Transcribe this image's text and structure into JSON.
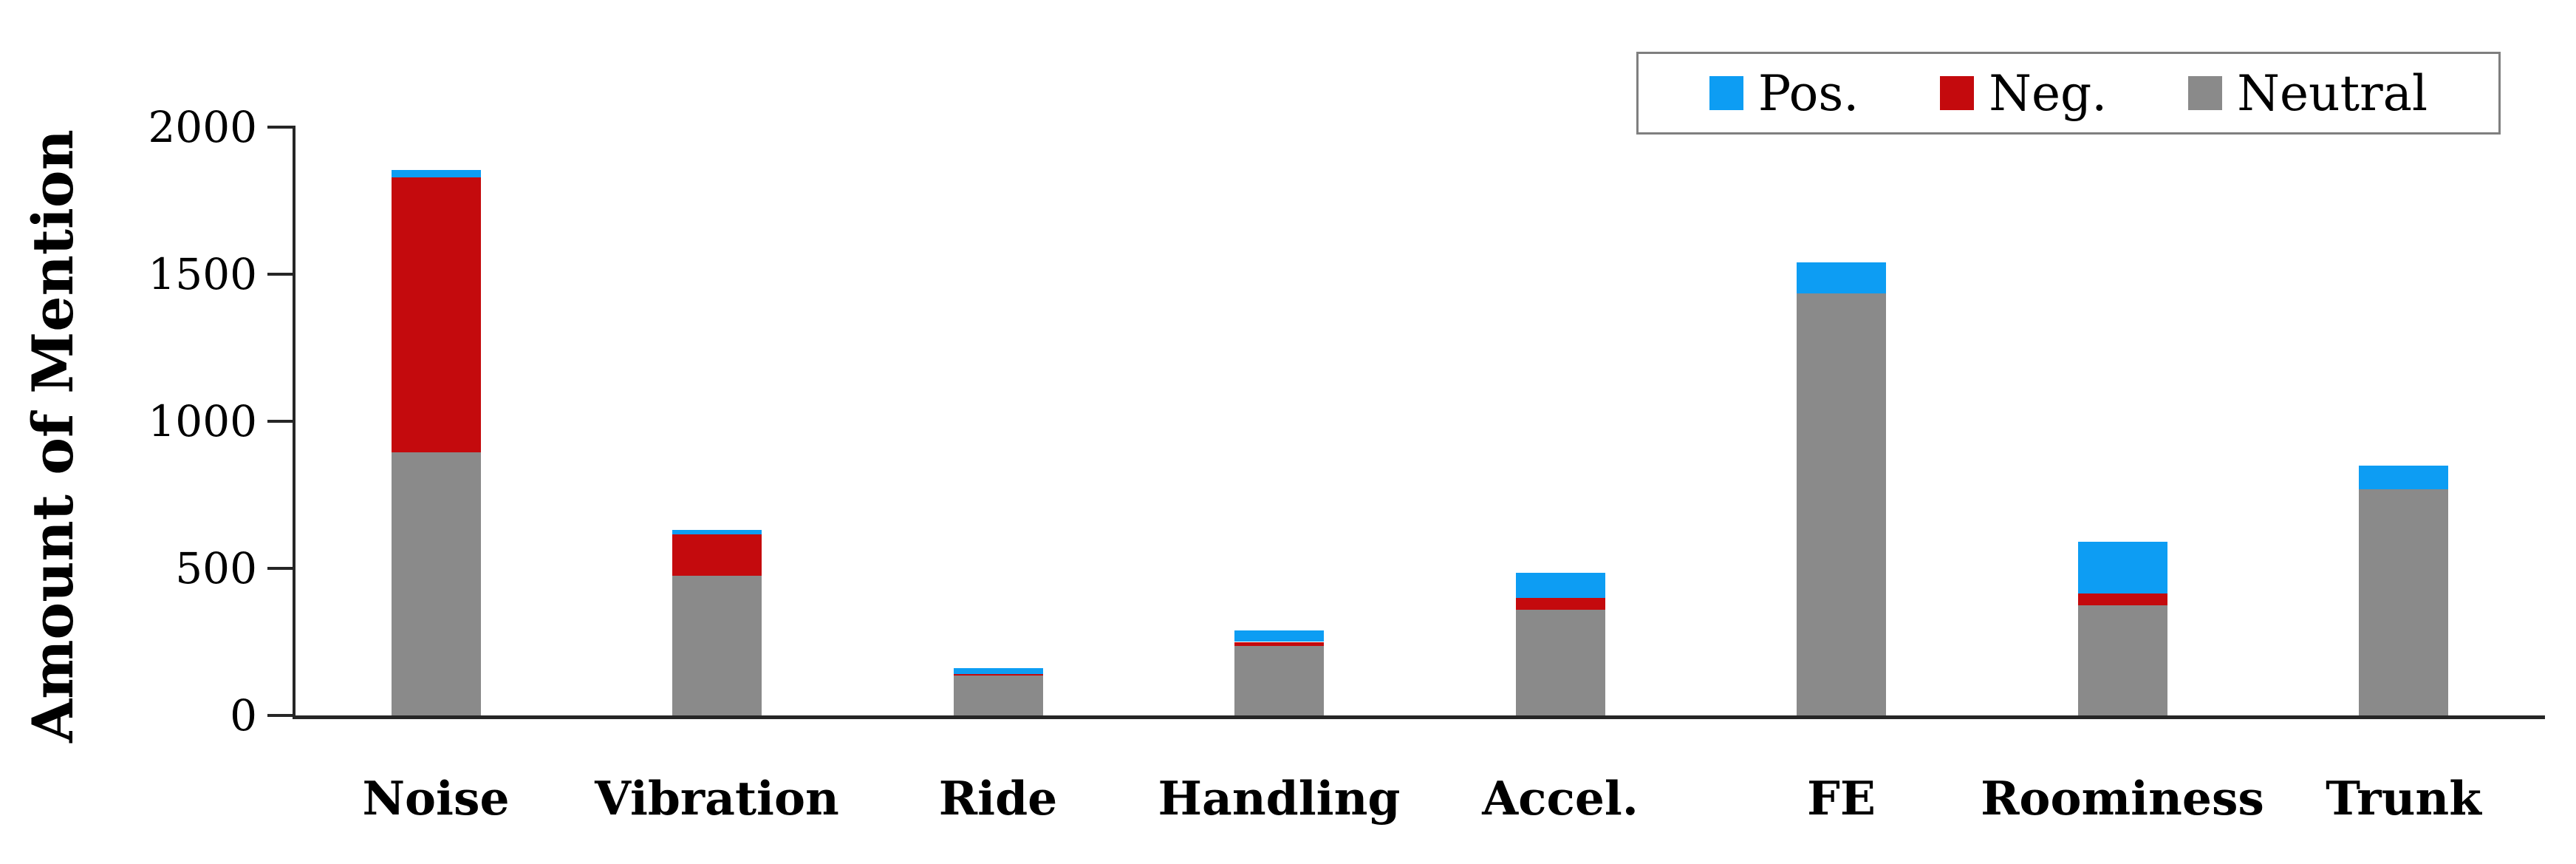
{
  "chart_data": {
    "type": "bar",
    "stacked": true,
    "title": "",
    "ylabel": "Amount of Mention",
    "xlabel": "",
    "ylim": [
      0,
      2000
    ],
    "yticks": [
      0,
      500,
      1000,
      1500,
      2000
    ],
    "ytick_labels": [
      "0",
      "500",
      "1000",
      "1500",
      "2000"
    ],
    "categories": [
      "Noise",
      "Vibration",
      "Ride",
      "Handling",
      "Accel.",
      "FE",
      "Roominess",
      "Trunk"
    ],
    "series": [
      {
        "name": "Pos.",
        "color": "#0D9DF3",
        "values": [
          25,
          15,
          20,
          40,
          85,
          105,
          175,
          80
        ]
      },
      {
        "name": "Neg.",
        "color": "#C40A0D",
        "values": [
          935,
          140,
          5,
          15,
          40,
          0,
          40,
          0
        ]
      },
      {
        "name": "Neutral",
        "color": "#8A8A8A",
        "values": [
          895,
          475,
          135,
          235,
          360,
          1435,
          375,
          770
        ]
      }
    ],
    "totals": [
      1855,
      630,
      160,
      290,
      485,
      1540,
      590,
      850
    ],
    "legend_position": "top-right",
    "grid": false,
    "axis_color": "#262626",
    "legend_border_color": "#7F7F7F"
  }
}
